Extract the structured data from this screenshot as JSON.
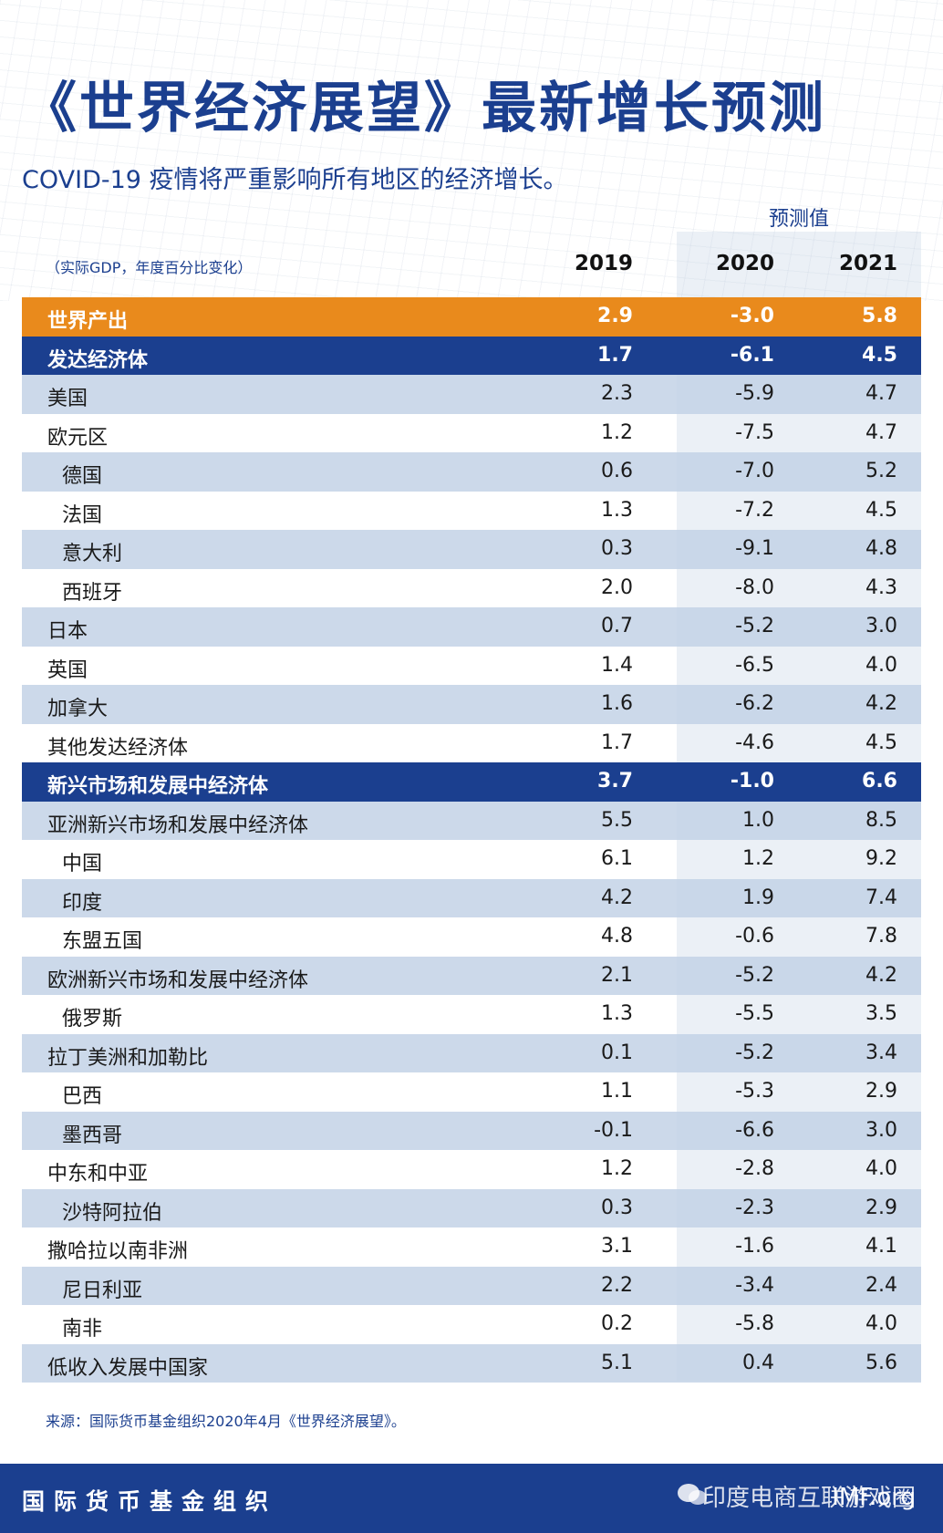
{
  "title": "《世界经济展望》最新增长预测",
  "subtitle": "COVID-19 疫情将严重影响所有地区的经济增长。",
  "source": "来源：国际货币基金组织2020年4月《世界经济展望》。",
  "footer": {
    "org": "国际货币基金组织",
    "site": "IMF.org"
  },
  "watermark": "印度电商互联游戏圈",
  "colors": {
    "navy": "#1b3f8f",
    "orange": "#e98a1c",
    "row_alt": "#c3d2e6"
  },
  "chart_data": {
    "type": "table",
    "units_label": "（实际GDP，年度百分比变化）",
    "forecast_label": "预测值",
    "columns": [
      "2019",
      "2020",
      "2021"
    ],
    "rows": [
      {
        "name": "世界产出",
        "values": [
          "2.9",
          "-3.0",
          "5.8"
        ],
        "style": "orange"
      },
      {
        "name": "发达经济体",
        "values": [
          "1.7",
          "-6.1",
          "4.5"
        ],
        "style": "navy"
      },
      {
        "name": "美国",
        "values": [
          "2.3",
          "-5.9",
          "4.7"
        ],
        "style": "alt"
      },
      {
        "name": "欧元区",
        "values": [
          "1.2",
          "-7.5",
          "4.7"
        ],
        "style": "white"
      },
      {
        "name": "德国",
        "values": [
          "0.6",
          "-7.0",
          "5.2"
        ],
        "style": "alt",
        "indent": true
      },
      {
        "name": "法国",
        "values": [
          "1.3",
          "-7.2",
          "4.5"
        ],
        "style": "white",
        "indent": true
      },
      {
        "name": "意大利",
        "values": [
          "0.3",
          "-9.1",
          "4.8"
        ],
        "style": "alt",
        "indent": true
      },
      {
        "name": "西班牙",
        "values": [
          "2.0",
          "-8.0",
          "4.3"
        ],
        "style": "white",
        "indent": true
      },
      {
        "name": "日本",
        "values": [
          "0.7",
          "-5.2",
          "3.0"
        ],
        "style": "alt"
      },
      {
        "name": "英国",
        "values": [
          "1.4",
          "-6.5",
          "4.0"
        ],
        "style": "white"
      },
      {
        "name": "加拿大",
        "values": [
          "1.6",
          "-6.2",
          "4.2"
        ],
        "style": "alt"
      },
      {
        "name": "其他发达经济体",
        "values": [
          "1.7",
          "-4.6",
          "4.5"
        ],
        "style": "white"
      },
      {
        "name": "新兴市场和发展中经济体",
        "values": [
          "3.7",
          "-1.0",
          "6.6"
        ],
        "style": "navy"
      },
      {
        "name": "亚洲新兴市场和发展中经济体",
        "values": [
          "5.5",
          "1.0",
          "8.5"
        ],
        "style": "alt"
      },
      {
        "name": "中国",
        "values": [
          "6.1",
          "1.2",
          "9.2"
        ],
        "style": "white",
        "indent": true
      },
      {
        "name": "印度",
        "values": [
          "4.2",
          "1.9",
          "7.4"
        ],
        "style": "alt",
        "indent": true
      },
      {
        "name": "东盟五国",
        "values": [
          "4.8",
          "-0.6",
          "7.8"
        ],
        "style": "white",
        "indent": true
      },
      {
        "name": "欧洲新兴市场和发展中经济体",
        "values": [
          "2.1",
          "-5.2",
          "4.2"
        ],
        "style": "alt"
      },
      {
        "name": "俄罗斯",
        "values": [
          "1.3",
          "-5.5",
          "3.5"
        ],
        "style": "white",
        "indent": true
      },
      {
        "name": "拉丁美洲和加勒比",
        "values": [
          "0.1",
          "-5.2",
          "3.4"
        ],
        "style": "alt"
      },
      {
        "name": "巴西",
        "values": [
          "1.1",
          "-5.3",
          "2.9"
        ],
        "style": "white",
        "indent": true
      },
      {
        "name": "墨西哥",
        "values": [
          "-0.1",
          "-6.6",
          "3.0"
        ],
        "style": "alt",
        "indent": true
      },
      {
        "name": "中东和中亚",
        "values": [
          "1.2",
          "-2.8",
          "4.0"
        ],
        "style": "white"
      },
      {
        "name": "沙特阿拉伯",
        "values": [
          "0.3",
          "-2.3",
          "2.9"
        ],
        "style": "alt",
        "indent": true
      },
      {
        "name": "撒哈拉以南非洲",
        "values": [
          "3.1",
          "-1.6",
          "4.1"
        ],
        "style": "white"
      },
      {
        "name": "尼日利亚",
        "values": [
          "2.2",
          "-3.4",
          "2.4"
        ],
        "style": "alt",
        "indent": true
      },
      {
        "name": "南非",
        "values": [
          "0.2",
          "-5.8",
          "4.0"
        ],
        "style": "white",
        "indent": true
      },
      {
        "name": "低收入发展中国家",
        "values": [
          "5.1",
          "0.4",
          "5.6"
        ],
        "style": "alt"
      }
    ]
  }
}
